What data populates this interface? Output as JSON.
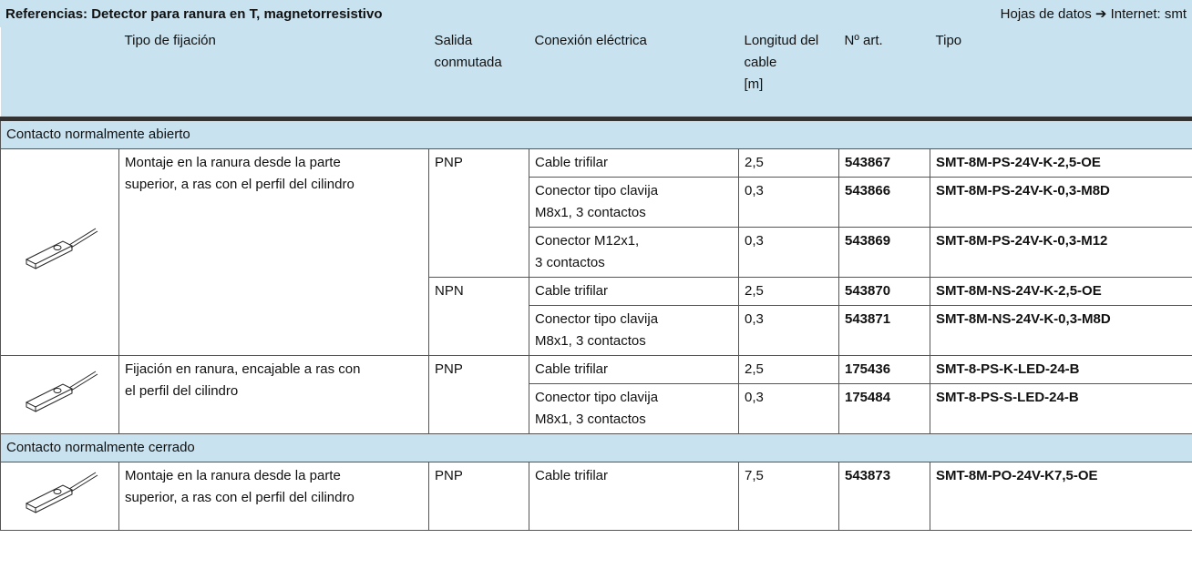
{
  "header": {
    "title": "Referencias: Detector para ranura en T, magnetorresistivo",
    "datasheet": "Hojas de datos ➔ Internet: smt"
  },
  "table": {
    "columns": [
      "Tipo de fijación",
      "Salida\nconmutada",
      "Conexión eléctrica",
      "Longitud del\ncable\n[m]",
      "Nº art.",
      "Tipo"
    ],
    "sections": [
      {
        "label": "Contacto normalmente abierto",
        "groups": [
          {
            "mounting": "Montaje en la ranura desde la parte\nsuperior, a ras con el perfil del cilindro",
            "outputs": [
              {
                "output": "PNP",
                "rows": [
                  {
                    "connection": "Cable trifilar",
                    "length": "2,5",
                    "part": "543867",
                    "type": "SMT-8M-PS-24V-K-2,5-OE"
                  },
                  {
                    "connection": "Conector tipo clavija\nM8x1, 3 contactos",
                    "length": "0,3",
                    "part": "543866",
                    "type": "SMT-8M-PS-24V-K-0,3-M8D"
                  },
                  {
                    "connection": "Conector M12x1,\n3 contactos",
                    "length": "0,3",
                    "part": "543869",
                    "type": "SMT-8M-PS-24V-K-0,3-M12"
                  }
                ]
              },
              {
                "output": "NPN",
                "rows": [
                  {
                    "connection": "Cable trifilar",
                    "length": "2,5",
                    "part": "543870",
                    "type": "SMT-8M-NS-24V-K-2,5-OE"
                  },
                  {
                    "connection": "Conector tipo clavija\nM8x1, 3 contactos",
                    "length": "0,3",
                    "part": "543871",
                    "type": "SMT-8M-NS-24V-K-0,3-M8D"
                  }
                ]
              }
            ]
          },
          {
            "mounting": "Fijación en ranura, encajable a ras con\nel perfil del cilindro",
            "outputs": [
              {
                "output": "PNP",
                "rows": [
                  {
                    "connection": "Cable trifilar",
                    "length": "2,5",
                    "part": "175436",
                    "type": "SMT-8-PS-K-LED-24-B"
                  },
                  {
                    "connection": "Conector tipo clavija\nM8x1, 3 contactos",
                    "length": "0,3",
                    "part": "175484",
                    "type": "SMT-8-PS-S-LED-24-B"
                  }
                ]
              }
            ]
          }
        ]
      },
      {
        "label": "Contacto normalmente cerrado",
        "groups": [
          {
            "mounting": "Montaje en la ranura desde la parte\nsuperior, a ras con el perfil del cilindro",
            "outputs": [
              {
                "output": "PNP",
                "rows": [
                  {
                    "connection": "Cable trifilar",
                    "length": "7,5",
                    "part": "543873",
                    "type": "SMT-8M-PO-24V-K7,5-OE"
                  }
                ]
              }
            ]
          }
        ]
      }
    ]
  }
}
